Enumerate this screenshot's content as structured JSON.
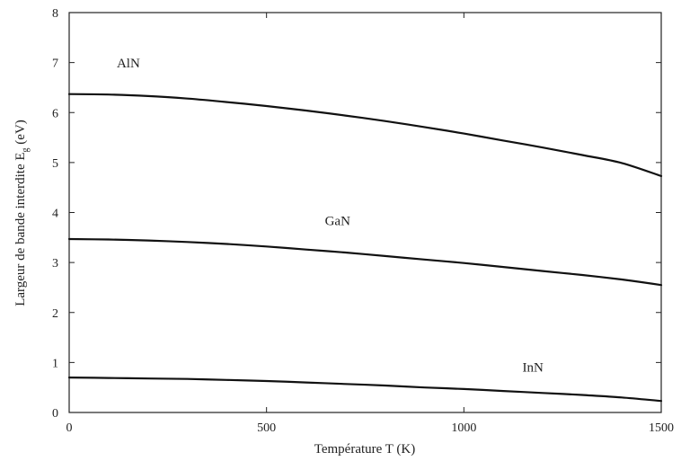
{
  "chart_data": {
    "type": "line",
    "title": "",
    "xlabel": "Température T (K)",
    "ylabel_main": "Largeur de bande interdite E",
    "ylabel_sub": "g",
    "ylabel_unit": " (eV)",
    "xlim": [
      0,
      1500
    ],
    "ylim": [
      0,
      8
    ],
    "x_ticks": [
      0,
      500,
      1000,
      1500
    ],
    "y_ticks": [
      0,
      1,
      2,
      3,
      4,
      5,
      6,
      7,
      8
    ],
    "grid": false,
    "legend": "none",
    "series": [
      {
        "name": "AlN",
        "label_at": [
          150,
          6.9
        ],
        "x": [
          0,
          100,
          200,
          300,
          400,
          500,
          600,
          700,
          800,
          900,
          1000,
          1100,
          1200,
          1300,
          1400,
          1500
        ],
        "y": [
          6.37,
          6.36,
          6.33,
          6.28,
          6.21,
          6.13,
          6.04,
          5.94,
          5.83,
          5.71,
          5.58,
          5.44,
          5.3,
          5.15,
          4.99,
          4.73
        ]
      },
      {
        "name": "GaN",
        "label_at": [
          680,
          3.75
        ],
        "x": [
          0,
          100,
          200,
          300,
          400,
          500,
          600,
          700,
          800,
          900,
          1000,
          1100,
          1200,
          1300,
          1400,
          1500
        ],
        "y": [
          3.47,
          3.46,
          3.44,
          3.41,
          3.37,
          3.32,
          3.26,
          3.2,
          3.13,
          3.06,
          2.99,
          2.91,
          2.83,
          2.75,
          2.66,
          2.55
        ]
      },
      {
        "name": "InN",
        "label_at": [
          1175,
          0.82
        ],
        "x": [
          0,
          100,
          200,
          300,
          400,
          500,
          600,
          700,
          800,
          900,
          1000,
          1100,
          1200,
          1300,
          1400,
          1500
        ],
        "y": [
          0.7,
          0.69,
          0.68,
          0.67,
          0.65,
          0.63,
          0.6,
          0.57,
          0.54,
          0.5,
          0.47,
          0.43,
          0.39,
          0.35,
          0.3,
          0.23
        ]
      }
    ]
  }
}
